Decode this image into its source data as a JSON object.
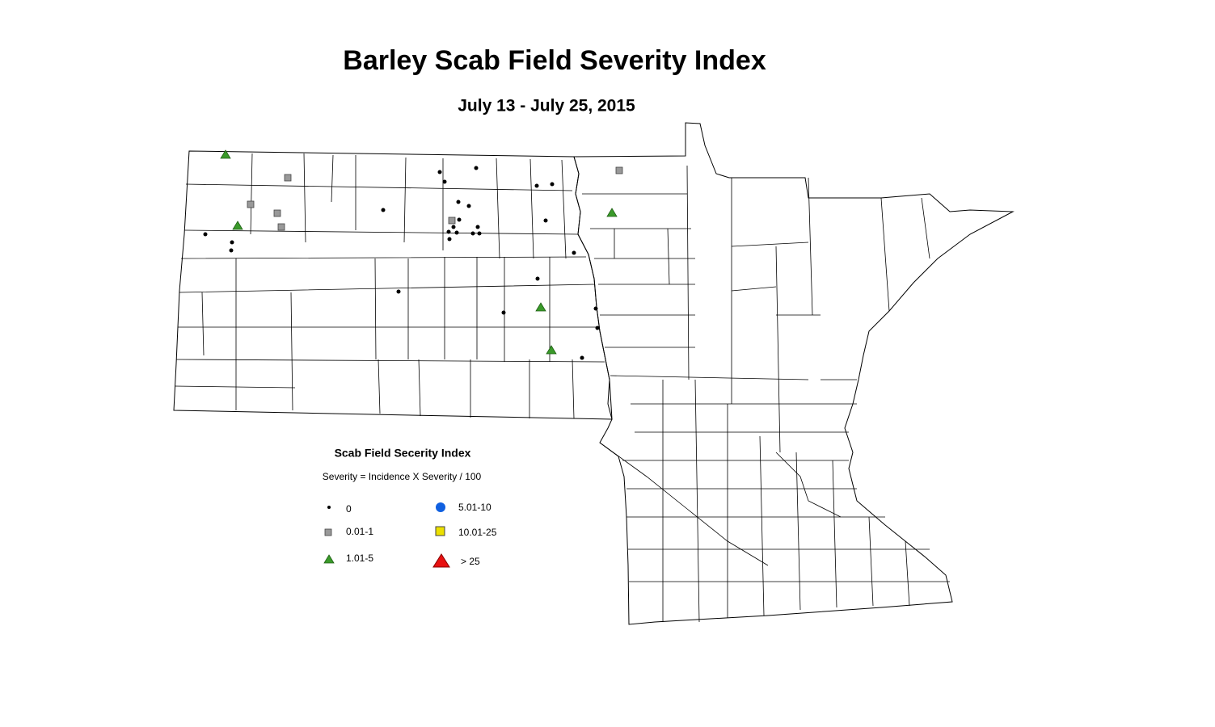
{
  "header": {
    "title": "Barley Scab Field Severity Index",
    "subtitle": "July 13 - July 25, 2015"
  },
  "legend": {
    "title": "Scab Field Secerity Index",
    "subtitle": "Severity = Incidence X Severity / 100",
    "items": [
      "0",
      "0.01-1",
      "1.01-5",
      "5.01-10",
      "10.01-25",
      "> 25"
    ]
  }
}
